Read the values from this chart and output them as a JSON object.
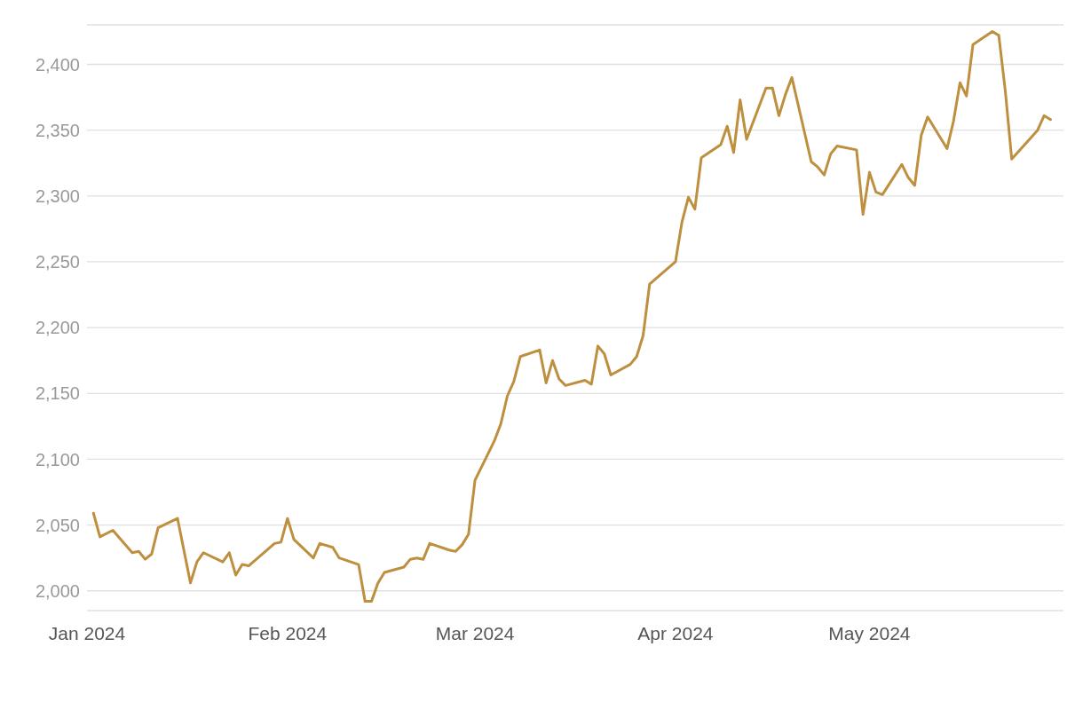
{
  "chart_data": {
    "type": "line",
    "x": [
      "2024-01-02",
      "2024-01-03",
      "2024-01-05",
      "2024-01-08",
      "2024-01-09",
      "2024-01-10",
      "2024-01-11",
      "2024-01-12",
      "2024-01-15",
      "2024-01-17",
      "2024-01-18",
      "2024-01-19",
      "2024-01-22",
      "2024-01-23",
      "2024-01-24",
      "2024-01-25",
      "2024-01-26",
      "2024-01-30",
      "2024-01-31",
      "2024-02-01",
      "2024-02-02",
      "2024-02-05",
      "2024-02-06",
      "2024-02-08",
      "2024-02-09",
      "2024-02-12",
      "2024-02-13",
      "2024-02-14",
      "2024-02-15",
      "2024-02-16",
      "2024-02-19",
      "2024-02-20",
      "2024-02-21",
      "2024-02-22",
      "2024-02-23",
      "2024-02-26",
      "2024-02-27",
      "2024-02-28",
      "2024-02-29",
      "2024-03-01",
      "2024-03-04",
      "2024-03-05",
      "2024-03-06",
      "2024-03-07",
      "2024-03-08",
      "2024-03-11",
      "2024-03-12",
      "2024-03-13",
      "2024-03-14",
      "2024-03-15",
      "2024-03-18",
      "2024-03-19",
      "2024-03-20",
      "2024-03-21",
      "2024-03-22",
      "2024-03-25",
      "2024-03-26",
      "2024-03-27",
      "2024-03-28",
      "2024-04-01",
      "2024-04-02",
      "2024-04-03",
      "2024-04-04",
      "2024-04-05",
      "2024-04-08",
      "2024-04-09",
      "2024-04-10",
      "2024-04-11",
      "2024-04-12",
      "2024-04-15",
      "2024-04-16",
      "2024-04-17",
      "2024-04-18",
      "2024-04-19",
      "2024-04-22",
      "2024-04-23",
      "2024-04-24",
      "2024-04-25",
      "2024-04-26",
      "2024-04-29",
      "2024-04-30",
      "2024-05-01",
      "2024-05-02",
      "2024-05-03",
      "2024-05-06",
      "2024-05-07",
      "2024-05-08",
      "2024-05-09",
      "2024-05-10",
      "2024-05-13",
      "2024-05-14",
      "2024-05-15",
      "2024-05-16",
      "2024-05-17",
      "2024-05-20",
      "2024-05-21",
      "2024-05-22",
      "2024-05-23",
      "2024-05-27",
      "2024-05-28",
      "2024-05-29"
    ],
    "series": [
      {
        "color": "#bd8f3e",
        "values": [
          2059,
          2041,
          2046,
          2029,
          2030,
          2024,
          2028,
          2048,
          2055,
          2006,
          2022,
          2029,
          2022,
          2029,
          2012,
          2020,
          2019,
          2036,
          2037,
          2055,
          2039,
          2025,
          2036,
          2033,
          2025,
          2020,
          1992,
          1992,
          2006,
          2014,
          2018,
          2024,
          2025,
          2024,
          2036,
          2031,
          2030,
          2035,
          2043,
          2084,
          2114,
          2127,
          2148,
          2159,
          2178,
          2183,
          2158,
          2175,
          2161,
          2156,
          2160,
          2157,
          2186,
          2180,
          2164,
          2172,
          2178,
          2194,
          2233,
          2250,
          2280,
          2299,
          2290,
          2329,
          2339,
          2353,
          2333,
          2373,
          2343,
          2382,
          2382,
          2361,
          2377,
          2390,
          2326,
          2322,
          2316,
          2332,
          2338,
          2335,
          2286,
          2318,
          2303,
          2301,
          2324,
          2314,
          2308,
          2346,
          2360,
          2336,
          2357,
          2386,
          2376,
          2415,
          2425,
          2422,
          2380,
          2328,
          2350,
          2361,
          2358
        ]
      }
    ],
    "xlim": [
      "2024-01-01",
      "2024-05-31"
    ],
    "xticks": [
      {
        "value": "2024-01-01",
        "label": "Jan 2024"
      },
      {
        "value": "2024-02-01",
        "label": "Feb 2024"
      },
      {
        "value": "2024-03-01",
        "label": "Mar 2024"
      },
      {
        "value": "2024-04-01",
        "label": "Apr 2024"
      },
      {
        "value": "2024-05-01",
        "label": "May 2024"
      }
    ],
    "ylim": [
      1985,
      2430
    ],
    "yticks": [
      {
        "value": 2000,
        "label": "2,000"
      },
      {
        "value": 2050,
        "label": "2,050"
      },
      {
        "value": 2100,
        "label": "2,100"
      },
      {
        "value": 2150,
        "label": "2,150"
      },
      {
        "value": 2200,
        "label": "2,200"
      },
      {
        "value": 2250,
        "label": "2,250"
      },
      {
        "value": 2300,
        "label": "2,300"
      },
      {
        "value": 2350,
        "label": "2,350"
      },
      {
        "value": 2400,
        "label": "2,400"
      }
    ],
    "grid": "y",
    "marker": "none",
    "line_style": "solid",
    "legend": false
  }
}
